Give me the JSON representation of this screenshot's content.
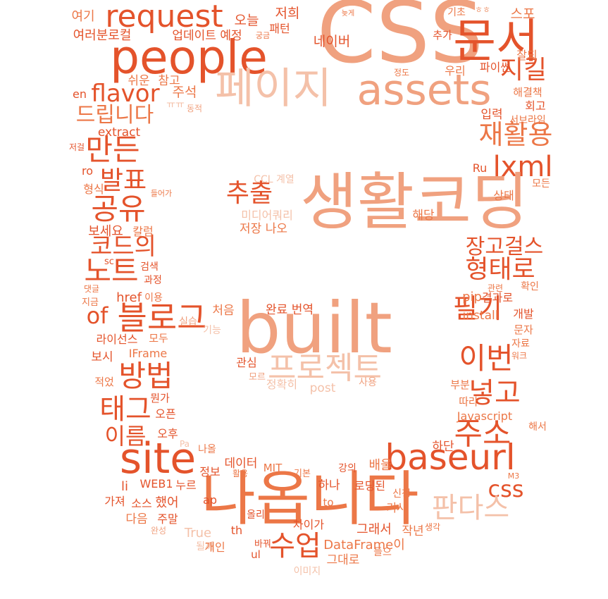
{
  "palette": {
    "deep": "#e4532b",
    "mid": "#ec7747",
    "light": "#f0a17f",
    "pale": "#f4c1a9"
  },
  "words": [
    {
      "text": "CSS",
      "tone": "light"
    },
    {
      "text": "people",
      "tone": "deep"
    },
    {
      "text": "문서",
      "tone": "deep"
    },
    {
      "text": "request",
      "tone": "deep"
    },
    {
      "text": "페이지",
      "tone": "pale"
    },
    {
      "text": "assets",
      "tone": "light"
    },
    {
      "text": "flavor",
      "tone": "deep"
    },
    {
      "text": "지킬",
      "tone": "deep"
    },
    {
      "text": "드립니다",
      "tone": "mid"
    },
    {
      "text": "재활용",
      "tone": "mid"
    },
    {
      "text": "만든",
      "tone": "deep"
    },
    {
      "text": "lxml",
      "tone": "deep"
    },
    {
      "text": "생활코딩",
      "tone": "light"
    },
    {
      "text": "발표",
      "tone": "deep"
    },
    {
      "text": "추출",
      "tone": "deep"
    },
    {
      "text": "공유",
      "tone": "deep"
    },
    {
      "text": "코드의",
      "tone": "deep"
    },
    {
      "text": "장고걸스",
      "tone": "deep"
    },
    {
      "text": "형태로",
      "tone": "deep"
    },
    {
      "text": "노트",
      "tone": "deep"
    },
    {
      "text": "블로그",
      "tone": "deep"
    },
    {
      "text": "of",
      "tone": "deep"
    },
    {
      "text": "built",
      "tone": "light"
    },
    {
      "text": "필기",
      "tone": "deep"
    },
    {
      "text": "이번",
      "tone": "deep"
    },
    {
      "text": "프로젝트",
      "tone": "pale"
    },
    {
      "text": "방법",
      "tone": "deep"
    },
    {
      "text": "넣고",
      "tone": "deep"
    },
    {
      "text": "태그",
      "tone": "deep"
    },
    {
      "text": "주소",
      "tone": "deep"
    },
    {
      "text": "이름",
      "tone": "deep"
    },
    {
      "text": "site",
      "tone": "deep"
    },
    {
      "text": "baseurl",
      "tone": "deep"
    },
    {
      "text": "css",
      "tone": "deep"
    },
    {
      "text": "나옵니다",
      "tone": "mid"
    },
    {
      "text": "판다스",
      "tone": "pale"
    },
    {
      "text": "수업",
      "tone": "deep"
    },
    {
      "text": "여기",
      "tone": "mid"
    },
    {
      "text": "여러분로컬",
      "tone": "deep"
    },
    {
      "text": "오늘",
      "tone": "deep"
    },
    {
      "text": "업데이트 예정",
      "tone": "deep"
    },
    {
      "text": "저희",
      "tone": "deep"
    },
    {
      "text": "패턴",
      "tone": "deep"
    },
    {
      "text": "궁금",
      "tone": "mid"
    },
    {
      "text": "네이버",
      "tone": "deep"
    },
    {
      "text": "늦게",
      "tone": "mid"
    },
    {
      "text": "기초",
      "tone": "mid"
    },
    {
      "text": "ㅎㅎ",
      "tone": "light"
    },
    {
      "text": "스포",
      "tone": "mid"
    },
    {
      "text": "추가",
      "tone": "deep"
    },
    {
      "text": "잘되",
      "tone": "mid"
    },
    {
      "text": "파이썬",
      "tone": "deep"
    },
    {
      "text": "우리",
      "tone": "mid"
    },
    {
      "text": "정도",
      "tone": "mid"
    },
    {
      "text": "쉬운",
      "tone": "mid"
    },
    {
      "text": "참고",
      "tone": "mid"
    },
    {
      "text": "주석",
      "tone": "mid"
    },
    {
      "text": "en",
      "tone": "deep"
    },
    {
      "text": "ㅠㅠ",
      "tone": "pale"
    },
    {
      "text": "동적",
      "tone": "light"
    },
    {
      "text": "해결책",
      "tone": "mid"
    },
    {
      "text": "회고",
      "tone": "deep"
    },
    {
      "text": "입력",
      "tone": "deep"
    },
    {
      "text": "서브라임",
      "tone": "mid"
    },
    {
      "text": "extract",
      "tone": "deep"
    },
    {
      "text": "저걸",
      "tone": "deep"
    },
    {
      "text": "ro",
      "tone": "deep"
    },
    {
      "text": "Ru",
      "tone": "deep"
    },
    {
      "text": "CCL 계열",
      "tone": "pale"
    },
    {
      "text": "형식",
      "tone": "mid"
    },
    {
      "text": "들어가",
      "tone": "mid"
    },
    {
      "text": "미디어쿼리",
      "tone": "pale"
    },
    {
      "text": "상태",
      "tone": "mid"
    },
    {
      "text": "모든",
      "tone": "mid"
    },
    {
      "text": "해당",
      "tone": "mid"
    },
    {
      "text": "저장 나오",
      "tone": "mid"
    },
    {
      "text": "보세요",
      "tone": "deep"
    },
    {
      "text": "칼럼",
      "tone": "mid"
    },
    {
      "text": "sc",
      "tone": "deep"
    },
    {
      "text": "검색",
      "tone": "deep"
    },
    {
      "text": "과정",
      "tone": "deep"
    },
    {
      "text": "관련",
      "tone": "mid"
    },
    {
      "text": "확인",
      "tone": "mid"
    },
    {
      "text": "댓글",
      "tone": "mid"
    },
    {
      "text": "지금",
      "tone": "mid"
    },
    {
      "text": "href",
      "tone": "deep"
    },
    {
      "text": "이용",
      "tone": "mid"
    },
    {
      "text": "pip",
      "tone": "mid"
    },
    {
      "text": "결과로",
      "tone": "deep"
    },
    {
      "text": "처음",
      "tone": "mid"
    },
    {
      "text": "실습",
      "tone": "light"
    },
    {
      "text": "완료 번역",
      "tone": "deep"
    },
    {
      "text": "install",
      "tone": "mid"
    },
    {
      "text": "개발",
      "tone": "deep"
    },
    {
      "text": "기능",
      "tone": "pale"
    },
    {
      "text": "라이선스",
      "tone": "deep"
    },
    {
      "text": "모두",
      "tone": "mid"
    },
    {
      "text": "IFrame",
      "tone": "mid"
    },
    {
      "text": "문자",
      "tone": "mid"
    },
    {
      "text": "자료",
      "tone": "mid"
    },
    {
      "text": "워크",
      "tone": "mid"
    },
    {
      "text": "보시",
      "tone": "deep"
    },
    {
      "text": "관심",
      "tone": "deep"
    },
    {
      "text": "모르",
      "tone": "light"
    },
    {
      "text": "정확히",
      "tone": "pale"
    },
    {
      "text": "post",
      "tone": "pale"
    },
    {
      "text": "사용",
      "tone": "light"
    },
    {
      "text": "적었",
      "tone": "mid"
    },
    {
      "text": "부분",
      "tone": "mid"
    },
    {
      "text": "뭔가",
      "tone": "deep"
    },
    {
      "text": "따라",
      "tone": "mid"
    },
    {
      "text": "오픈",
      "tone": "deep"
    },
    {
      "text": "Javascript",
      "tone": "mid"
    },
    {
      "text": "해서",
      "tone": "mid"
    },
    {
      "text": "오후",
      "tone": "deep"
    },
    {
      "text": "Pa",
      "tone": "pale"
    },
    {
      "text": "하단",
      "tone": "deep"
    },
    {
      "text": "나올",
      "tone": "mid"
    },
    {
      "text": "데이터",
      "tone": "deep"
    },
    {
      "text": "MIT",
      "tone": "mid"
    },
    {
      "text": "기본",
      "tone": "mid"
    },
    {
      "text": "강의",
      "tone": "deep"
    },
    {
      "text": "배울",
      "tone": "mid"
    },
    {
      "text": "정보",
      "tone": "deep"
    },
    {
      "text": "활용",
      "tone": "mid"
    },
    {
      "text": "M3",
      "tone": "mid"
    },
    {
      "text": "li",
      "tone": "deep"
    },
    {
      "text": "WEB1",
      "tone": "deep"
    },
    {
      "text": "하나",
      "tone": "deep"
    },
    {
      "text": "로딩된",
      "tone": "deep"
    },
    {
      "text": "누르",
      "tone": "deep"
    },
    {
      "text": "ap",
      "tone": "deep"
    },
    {
      "text": "신청",
      "tone": "mid"
    },
    {
      "text": "가져",
      "tone": "deep"
    },
    {
      "text": "소스",
      "tone": "deep"
    },
    {
      "text": "했어",
      "tone": "deep"
    },
    {
      "text": "to",
      "tone": "mid"
    },
    {
      "text": "기사",
      "tone": "mid"
    },
    {
      "text": "다음",
      "tone": "mid"
    },
    {
      "text": "주말",
      "tone": "deep"
    },
    {
      "text": "올리",
      "tone": "deep"
    },
    {
      "text": "차이가",
      "tone": "deep"
    },
    {
      "text": "그래서",
      "tone": "deep"
    },
    {
      "text": "작년",
      "tone": "mid"
    },
    {
      "text": "생각",
      "tone": "mid"
    },
    {
      "text": "완성",
      "tone": "light"
    },
    {
      "text": "True",
      "tone": "pale"
    },
    {
      "text": "th",
      "tone": "deep"
    },
    {
      "text": "될까",
      "tone": "pale"
    },
    {
      "text": "DataFrame이",
      "tone": "mid"
    },
    {
      "text": "개인",
      "tone": "mid"
    },
    {
      "text": "바꿔",
      "tone": "deep"
    },
    {
      "text": "ul",
      "tone": "deep"
    },
    {
      "text": "그대로",
      "tone": "mid"
    },
    {
      "text": "들으",
      "tone": "mid"
    },
    {
      "text": "이미지",
      "tone": "pale"
    }
  ]
}
